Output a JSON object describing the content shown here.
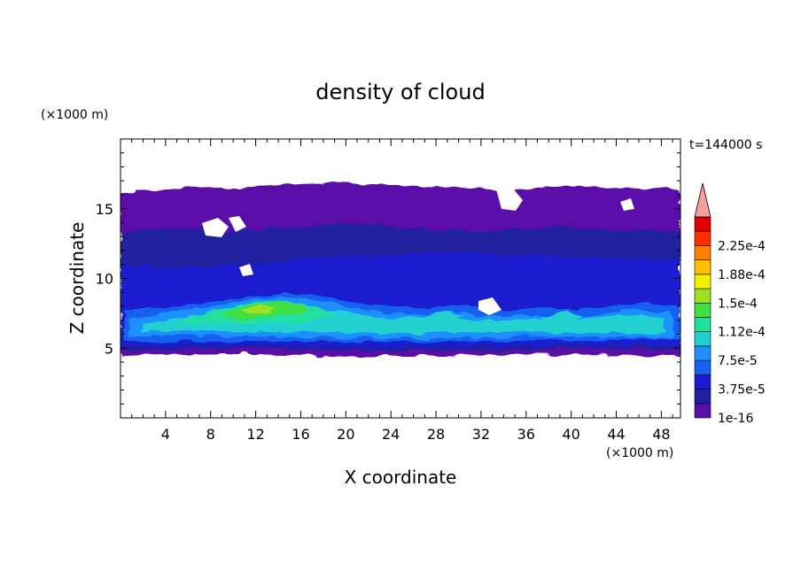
{
  "chart_data": {
    "type": "heatmap",
    "title": "density of cloud",
    "xlabel": "X coordinate",
    "ylabel": "Z coordinate",
    "x_unit": "(×1000 m)",
    "y_unit": "(×1000 m)",
    "time_label": "t=144000 s",
    "xlim": [
      0,
      49.7
    ],
    "ylim": [
      0,
      20
    ],
    "x_ticks": [
      4,
      8,
      12,
      16,
      20,
      24,
      28,
      32,
      36,
      40,
      44,
      48
    ],
    "y_ticks": [
      5,
      10,
      15
    ],
    "colorbar": {
      "levels": [
        1e-16,
        1.875e-05,
        3.75e-05,
        5.625e-05,
        7.5e-05,
        9.375e-05,
        0.0001125,
        0.00013125,
        0.00015,
        0.00016875,
        0.0001875,
        0.00020625,
        0.000225,
        0.00024375
      ],
      "tick_labels": [
        "1e-16",
        "3.75e-5",
        "7.5e-5",
        "1.12e-4",
        "1.5e-4",
        "1.88e-4",
        "2.25e-4"
      ],
      "colors": [
        "#5a0fa8",
        "#2020a0",
        "#1a1ad0",
        "#1560f0",
        "#1e90ff",
        "#20d0d0",
        "#20e0a0",
        "#40e040",
        "#a0e020",
        "#f0f000",
        "#ffc000",
        "#ff8000",
        "#ff3000",
        "#e00000"
      ],
      "overflow_color": "#f4a0a0"
    }
  }
}
